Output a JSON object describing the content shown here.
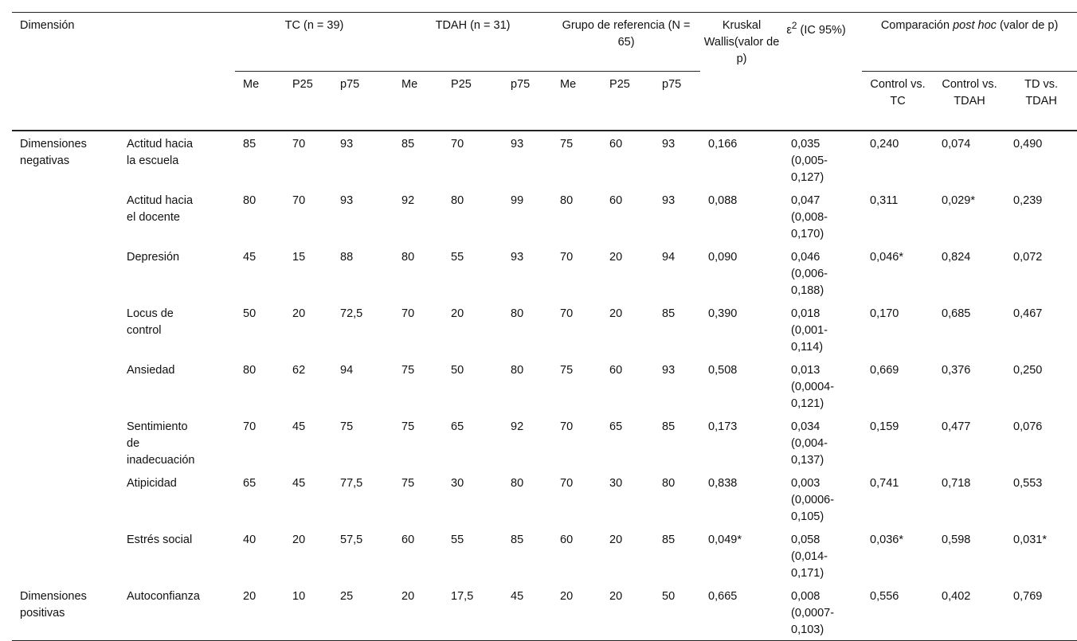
{
  "table": {
    "header": {
      "dimension": "Dimensión",
      "groups": [
        "TC (n = 39)",
        "TDAH (n = 31)",
        "Grupo de referencia (N = 65)"
      ],
      "kruskal": "Kruskal Wallis(valor de p)",
      "epsilon": "ε",
      "epsilon_sup": "2",
      "epsilon_rest": " (IC 95%)",
      "posthoc_pre": "Comparación ",
      "posthoc_italic": "post hoc",
      "posthoc_post": " (valor de p)",
      "subcols": [
        "Me",
        "P25",
        "p75"
      ],
      "posthoc_cols": [
        "Control vs. TC",
        "Control vs. TDAH",
        "TD vs. TDAH"
      ]
    },
    "groups": [
      {
        "label": "Dimensiones negativas",
        "items": [
          {
            "name": "Actitud hacia la escuela",
            "cells": [
              "85",
              "70",
              "93",
              "85",
              "70",
              "93",
              "75",
              "60",
              "93",
              "0,166",
              "0,035 (0,005-0,127)",
              "0,240",
              "0,074",
              "0,490"
            ]
          },
          {
            "name": "Actitud hacia el docente",
            "cells": [
              "80",
              "70",
              "93",
              "92",
              "80",
              "99",
              "80",
              "60",
              "93",
              "0,088",
              "0,047 (0,008-0,170)",
              "0,311",
              "0,029*",
              "0,239"
            ]
          },
          {
            "name": "Depresión",
            "cells": [
              "45",
              "15",
              "88",
              "80",
              "55",
              "93",
              "70",
              "20",
              "94",
              "0,090",
              "0,046 (0,006-0,188)",
              "0,046*",
              "0,824",
              "0,072"
            ]
          },
          {
            "name": "Locus de control",
            "cells": [
              "50",
              "20",
              "72,5",
              "70",
              "20",
              "80",
              "70",
              "20",
              "85",
              "0,390",
              "0,018 (0,001-0,114)",
              "0,170",
              "0,685",
              "0,467"
            ]
          },
          {
            "name": "Ansiedad",
            "cells": [
              "80",
              "62",
              "94",
              "75",
              "50",
              "80",
              "75",
              "60",
              "93",
              "0,508",
              "0,013 (0,0004-0,121)",
              "0,669",
              "0,376",
              "0,250"
            ]
          },
          {
            "name": "Sentimiento de inadecuación",
            "cells": [
              "70",
              "45",
              "75",
              "75",
              "65",
              "92",
              "70",
              "65",
              "85",
              "0,173",
              "0,034 (0,004-0,137)",
              "0,159",
              "0,477",
              "0,076"
            ]
          },
          {
            "name": "Atipicidad",
            "cells": [
              "65",
              "45",
              "77,5",
              "75",
              "30",
              "80",
              "70",
              "30",
              "80",
              "0,838",
              "0,003 (0,0006-0,105)",
              "0,741",
              "0,718",
              "0,553"
            ]
          },
          {
            "name": "Estrés social",
            "cells": [
              "40",
              "20",
              "57,5",
              "60",
              "55",
              "85",
              "60",
              "20",
              "85",
              "0,049*",
              "0,058 (0,014-0,171)",
              "0,036*",
              "0,598",
              "0,031*"
            ]
          }
        ]
      },
      {
        "label": "Dimensiones positivas",
        "items": [
          {
            "name": "Autoconfianza",
            "cells": [
              "20",
              "10",
              "25",
              "20",
              "17,5",
              "45",
              "20",
              "20",
              "50",
              "0,665",
              "0,008 (0,0007-0,103)",
              "0,556",
              "0,402",
              "0,769"
            ]
          }
        ]
      }
    ]
  }
}
